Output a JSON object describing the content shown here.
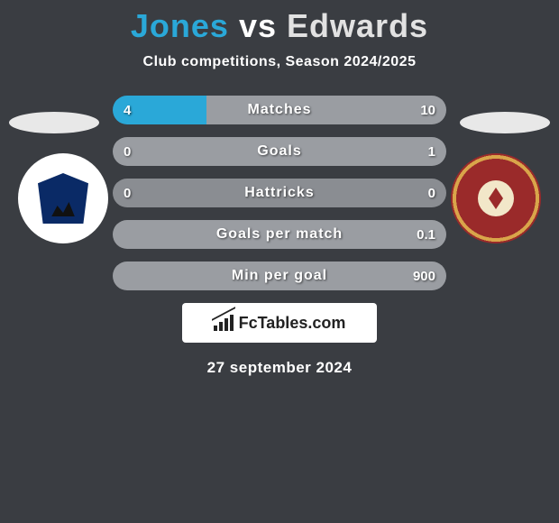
{
  "title": {
    "player1": "Jones",
    "vs": "vs",
    "player2": "Edwards"
  },
  "subtitle": "Club competitions, Season 2024/2025",
  "colors": {
    "player1": "#2aa8d8",
    "player2": "#9a9da2",
    "neutral": "#8a8d92"
  },
  "stats": [
    {
      "label": "Matches",
      "p1": "4",
      "p2": "10",
      "p1_pct": 28,
      "p2_pct": 72
    },
    {
      "label": "Goals",
      "p1": "0",
      "p2": "1",
      "p1_pct": 0,
      "p2_pct": 100
    },
    {
      "label": "Hattricks",
      "p1": "0",
      "p2": "0",
      "p1_pct": 0,
      "p2_pct": 0
    },
    {
      "label": "Goals per match",
      "p1": "",
      "p2": "0.1",
      "p1_pct": 0,
      "p2_pct": 100
    },
    {
      "label": "Min per goal",
      "p1": "",
      "p2": "900",
      "p1_pct": 0,
      "p2_pct": 100
    }
  ],
  "logo_text": "FcTables.com",
  "date": "27 september 2024"
}
